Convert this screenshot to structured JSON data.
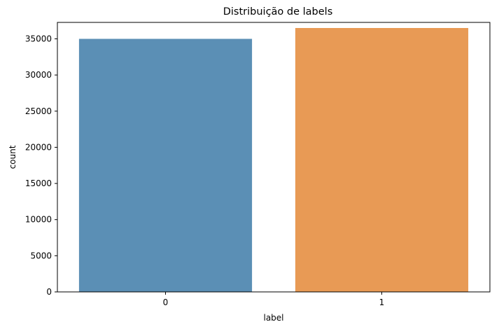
{
  "chart_data": {
    "type": "bar",
    "title": "Distribuição de labels",
    "xlabel": "label",
    "ylabel": "count",
    "categories": [
      "0",
      "1"
    ],
    "values": [
      35000,
      36500
    ],
    "colors": [
      "#5b8fb5",
      "#e89a55"
    ],
    "ylim": [
      0,
      37275
    ],
    "yticks": [
      0,
      5000,
      10000,
      15000,
      20000,
      25000,
      30000,
      35000
    ],
    "grid": false,
    "legend": "none"
  }
}
